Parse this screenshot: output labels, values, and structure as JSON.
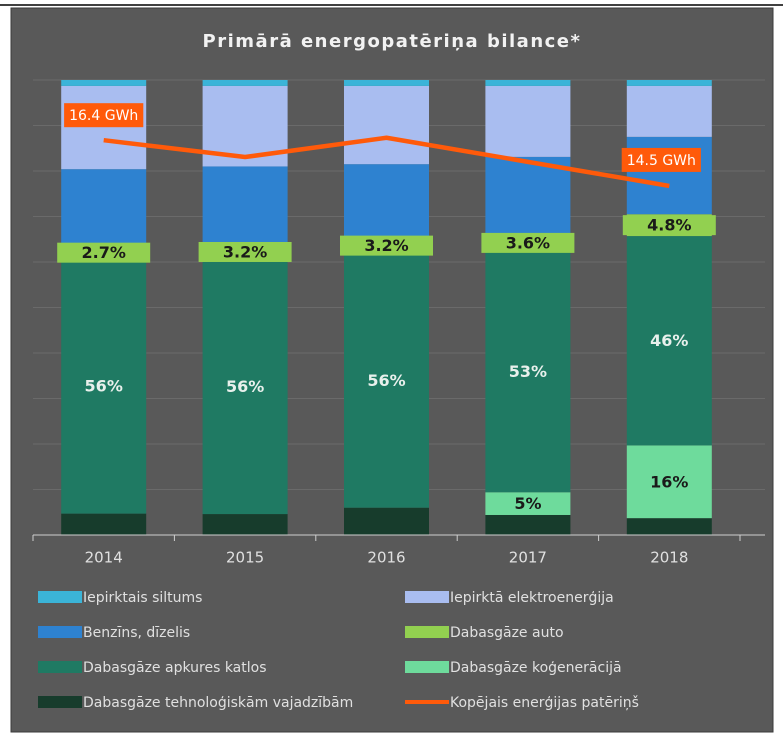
{
  "chart_data": {
    "type": "bar",
    "stacked": true,
    "title": "Primārā energopatēriņa bilance*",
    "categories": [
      "2014",
      "2015",
      "2016",
      "2017",
      "2018"
    ],
    "ylim": [
      0,
      100
    ],
    "yticks": [
      0,
      10,
      20,
      30,
      40,
      50,
      60,
      70,
      80,
      90,
      100
    ],
    "y2lim": [
      0,
      18.9
    ],
    "grid": true,
    "legend": "bottom",
    "series": [
      {
        "name": "Iepirktais siltums",
        "color": "#3bb4d8",
        "values": [
          1.3,
          1.3,
          1.3,
          1.3,
          1.3
        ]
      },
      {
        "name": "Iepirktā elektroenerģija",
        "color": "#a9bdf0",
        "values": [
          18.3,
          17.7,
          17.2,
          15.6,
          11.2
        ]
      },
      {
        "name": "Benzīns, dīzelis",
        "color": "#2e82d0",
        "values": [
          17,
          17.2,
          16.3,
          17.1,
          17
        ]
      },
      {
        "name": "Dabasgāze auto",
        "color": "#92d050",
        "values": [
          2.7,
          3.2,
          3.2,
          3.6,
          4.8
        ],
        "value_labels": [
          "2.7%",
          "3.2%",
          "3.2%",
          "3.6%",
          "4.8%"
        ]
      },
      {
        "name": "Dabasgāze apkures katlos",
        "color": "#1f7a63",
        "values": [
          56,
          56,
          56,
          53,
          46
        ],
        "value_labels": [
          "56%",
          "56%",
          "56%",
          "53%",
          "46%"
        ]
      },
      {
        "name": "Dabasgāze koģenerācijā",
        "color": "#6edb9c",
        "values": [
          0,
          0,
          0,
          5,
          16
        ],
        "value_labels": [
          null,
          null,
          null,
          "5%",
          "16%"
        ]
      },
      {
        "name": "Dabasgāze tehnoloģiskām vajadzībām",
        "color": "#173c2c",
        "values": [
          4.7,
          4.6,
          6,
          4.4,
          3.7
        ]
      },
      {
        "name": "Kopējais enerģijas patēriņš",
        "color": "#ff5a0a",
        "type": "line",
        "axis": "y2",
        "values": [
          16.4,
          15.7,
          16.5,
          15.5,
          14.5
        ],
        "value_labels": [
          "16.4 GWh",
          null,
          null,
          null,
          "14.5 GWh"
        ]
      }
    ]
  }
}
